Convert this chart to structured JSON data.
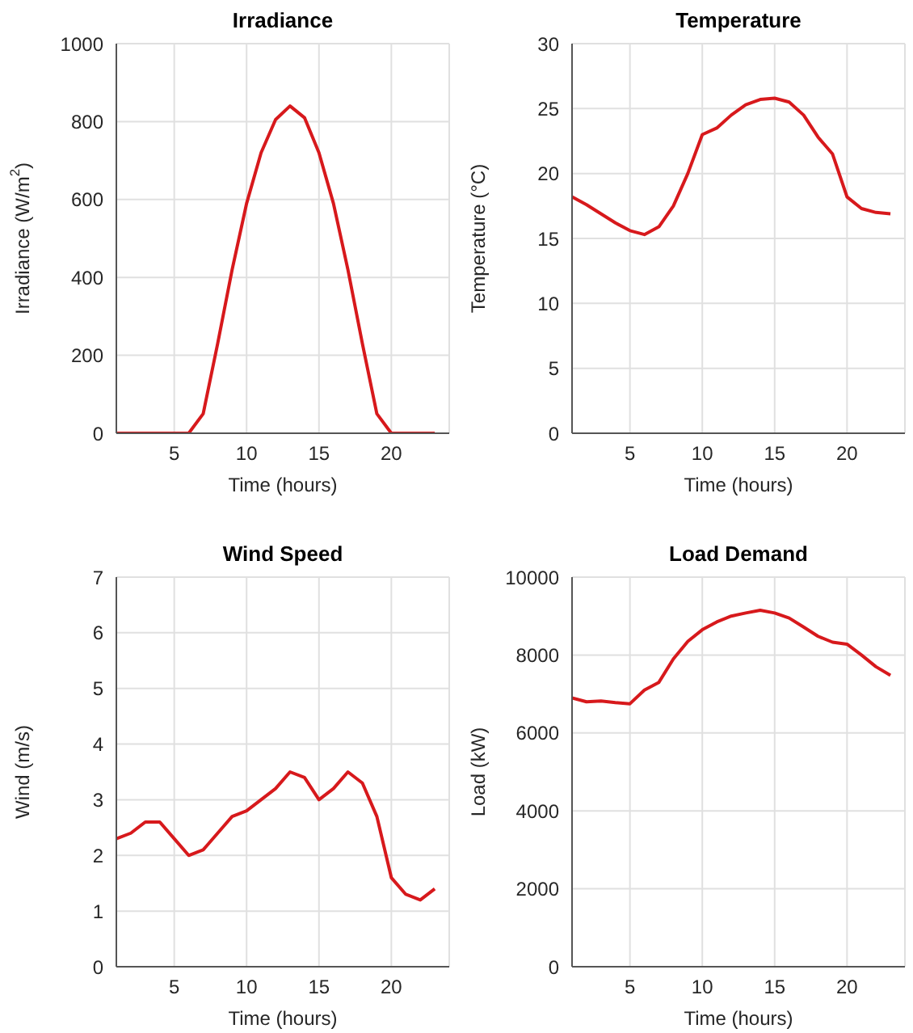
{
  "chart_data": [
    {
      "type": "line",
      "title": "Irradiance",
      "xlabel": "Time (hours)",
      "ylabel": "Irradiance (W/m$^{2}$)",
      "x": [
        1,
        2,
        3,
        4,
        5,
        6,
        7,
        8,
        9,
        10,
        11,
        12,
        13,
        14,
        15,
        16,
        17,
        18,
        19,
        20,
        21,
        22,
        23
      ],
      "series": [
        {
          "color": "#d7191c",
          "values": [
            0,
            0,
            0,
            0,
            0,
            0,
            50,
            230,
            420,
            590,
            720,
            805,
            840,
            810,
            720,
            590,
            420,
            230,
            50,
            0,
            0,
            0,
            0
          ]
        }
      ],
      "xlim": [
        1,
        24
      ],
      "xticks": [
        5,
        10,
        15,
        20
      ],
      "ylim": [
        0,
        1000
      ],
      "yticks": [
        0,
        200,
        400,
        600,
        800,
        1000
      ],
      "grid": true
    },
    {
      "type": "line",
      "title": "Temperature",
      "xlabel": "Time (hours)",
      "ylabel": "Temperature (°C)",
      "x": [
        1,
        2,
        3,
        4,
        5,
        6,
        7,
        8,
        9,
        10,
        11,
        12,
        13,
        14,
        15,
        16,
        17,
        18,
        19,
        20,
        21,
        22,
        23
      ],
      "series": [
        {
          "color": "#d7191c",
          "values": [
            18.2,
            17.6,
            16.9,
            16.2,
            15.6,
            15.3,
            15.9,
            17.5,
            20,
            23,
            23.5,
            24.5,
            25.3,
            25.7,
            25.8,
            25.5,
            24.5,
            22.8,
            21.5,
            18.2,
            17.3,
            17,
            16.9
          ]
        }
      ],
      "xlim": [
        1,
        24
      ],
      "xticks": [
        5,
        10,
        15,
        20
      ],
      "ylim": [
        0,
        30
      ],
      "yticks": [
        0,
        5,
        10,
        15,
        20,
        25,
        30
      ],
      "grid": true
    },
    {
      "type": "line",
      "title": "Wind Speed",
      "xlabel": "Time (hours)",
      "ylabel": "Wind (m/s)",
      "x": [
        1,
        2,
        3,
        4,
        5,
        6,
        7,
        8,
        9,
        10,
        11,
        12,
        13,
        14,
        15,
        16,
        17,
        18,
        19,
        20,
        21,
        22,
        23
      ],
      "series": [
        {
          "color": "#d7191c",
          "values": [
            2.3,
            2.4,
            2.6,
            2.6,
            2.3,
            2,
            2.1,
            2.4,
            2.7,
            2.8,
            3,
            3.2,
            3.5,
            3.4,
            3,
            3.2,
            3.5,
            3.3,
            2.7,
            1.6,
            1.3,
            1.2,
            1.4
          ]
        }
      ],
      "xlim": [
        1,
        24
      ],
      "xticks": [
        5,
        10,
        15,
        20
      ],
      "ylim": [
        0,
        7
      ],
      "yticks": [
        0,
        1,
        2,
        3,
        4,
        5,
        6,
        7
      ],
      "grid": true
    },
    {
      "type": "line",
      "title": "Load Demand",
      "xlabel": "Time (hours)",
      "ylabel": "Load (kW)",
      "x": [
        1,
        2,
        3,
        4,
        5,
        6,
        7,
        8,
        9,
        10,
        11,
        12,
        13,
        14,
        15,
        16,
        17,
        18,
        19,
        20,
        21,
        22,
        23
      ],
      "series": [
        {
          "color": "#d7191c",
          "values": [
            6900,
            6800,
            6820,
            6780,
            6750,
            7100,
            7300,
            7900,
            8350,
            8650,
            8850,
            9000,
            9080,
            9150,
            9080,
            8950,
            8720,
            8480,
            8330,
            8280,
            8000,
            7700,
            7480
          ]
        }
      ],
      "xlim": [
        1,
        24
      ],
      "xticks": [
        5,
        10,
        15,
        20
      ],
      "ylim": [
        0,
        10000
      ],
      "yticks": [
        0,
        2000,
        4000,
        6000,
        8000,
        10000
      ],
      "grid": true
    }
  ]
}
